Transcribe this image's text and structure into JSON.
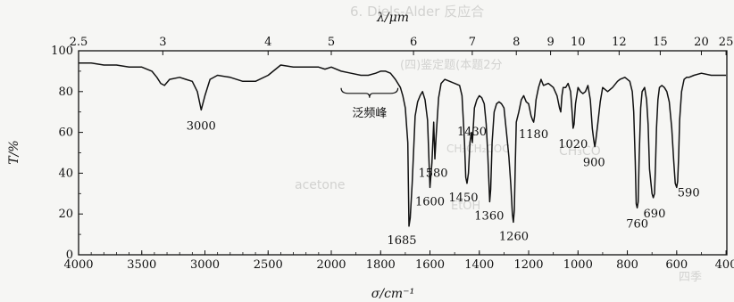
{
  "background_text": {
    "line1": "6. Diels-Alder 反应合",
    "line2": "(四)鉴定题(本题2分",
    "line3": "CH₃CO",
    "line4": "CH₃CH₂COC",
    "line5": "acetone",
    "line6": "EtOH",
    "line7": "四季"
  },
  "chart_data": {
    "type": "line",
    "title": "",
    "xlabel": "σ/cm⁻¹",
    "ylabel": "T/%",
    "top_xlabel": "λ/μm",
    "xlim": [
      4000,
      400
    ],
    "ylim": [
      0,
      100
    ],
    "x_ticks": [
      "4000",
      "3500",
      "3000",
      "2500",
      "2000",
      "1800",
      "1600",
      "1400",
      "1200",
      "1000",
      "800",
      "600",
      "400"
    ],
    "y_ticks": [
      "0",
      "20",
      "40",
      "60",
      "80",
      "100"
    ],
    "top_ticks": [
      "2.5",
      "3",
      "4",
      "5",
      "6",
      "7",
      "8",
      "9",
      "10",
      "12",
      "15",
      "20",
      "25"
    ],
    "grid": false,
    "annotation": "泛频峰",
    "peaks": [
      {
        "label": "3000",
        "x": 3030,
        "y": 71
      },
      {
        "label": "1685",
        "x": 1685,
        "y": 14
      },
      {
        "label": "1600",
        "x": 1600,
        "y": 33
      },
      {
        "label": "1580",
        "x": 1580,
        "y": 47
      },
      {
        "label": "1450",
        "x": 1450,
        "y": 35
      },
      {
        "label": "1430",
        "x": 1430,
        "y": 55
      },
      {
        "label": "1360",
        "x": 1360,
        "y": 26
      },
      {
        "label": "1260",
        "x": 1260,
        "y": 16
      },
      {
        "label": "1180",
        "x": 1180,
        "y": 65
      },
      {
        "label": "1020",
        "x": 1020,
        "y": 62
      },
      {
        "label": "900",
        "x": 935,
        "y": 53
      },
      {
        "label": "760",
        "x": 760,
        "y": 23
      },
      {
        "label": "690",
        "x": 690,
        "y": 28
      },
      {
        "label": "590",
        "x": 595,
        "y": 33
      }
    ],
    "series": [
      {
        "x": [
          4000,
          3900,
          3800,
          3700,
          3600,
          3500,
          3420,
          3380,
          3350,
          3320,
          3280,
          3200,
          3150,
          3100,
          3060,
          3030,
          3000,
          2960,
          2900,
          2800,
          2700,
          2600,
          2500,
          2400,
          2300,
          2200,
          2100,
          2050,
          2000,
          1960,
          1920,
          1880,
          1850,
          1820,
          1800,
          1780,
          1760,
          1740,
          1720,
          1710,
          1700,
          1690,
          1685,
          1680,
          1672,
          1665,
          1660,
          1650,
          1640,
          1630,
          1620,
          1610,
          1600,
          1592,
          1585,
          1580,
          1575,
          1565,
          1555,
          1540,
          1520,
          1500,
          1480,
          1470,
          1460,
          1455,
          1450,
          1444,
          1438,
          1432,
          1428,
          1420,
          1410,
          1400,
          1390,
          1380,
          1372,
          1366,
          1362,
          1358,
          1354,
          1348,
          1340,
          1330,
          1320,
          1310,
          1300,
          1290,
          1280,
          1272,
          1266,
          1262,
          1258,
          1254,
          1250,
          1240,
          1230,
          1220,
          1210,
          1200,
          1190,
          1184,
          1180,
          1176,
          1170,
          1160,
          1150,
          1140,
          1120,
          1100,
          1085,
          1075,
          1070,
          1065,
          1060,
          1050,
          1040,
          1030,
          1024,
          1020,
          1016,
          1010,
          1000,
          990,
          980,
          970,
          960,
          950,
          942,
          936,
          932,
          928,
          920,
          910,
          900,
          880,
          860,
          840,
          830,
          810,
          800,
          790,
          780,
          774,
          768,
          764,
          760,
          756,
          752,
          746,
          740,
          730,
          722,
          716,
          710,
          700,
          695,
          690,
          686,
          682,
          676,
          670,
          660,
          650,
          640,
          630,
          620,
          612,
          606,
          600,
          596,
          592,
          588,
          580,
          570,
          560,
          550,
          530,
          500,
          460,
          430,
          410,
          400
        ],
        "y": [
          94,
          94,
          93,
          93,
          92,
          92,
          90,
          87,
          84,
          83,
          86,
          87,
          86,
          85,
          80,
          71,
          78,
          86,
          88,
          87,
          85,
          85,
          88,
          93,
          92,
          92,
          92,
          91,
          92,
          90,
          89,
          88,
          88,
          89,
          90,
          90,
          89,
          86,
          82,
          78,
          72,
          55,
          14,
          18,
          35,
          55,
          68,
          75,
          78,
          80,
          76,
          66,
          33,
          45,
          65,
          47,
          58,
          77,
          84,
          86,
          85,
          84,
          83,
          78,
          55,
          38,
          35,
          40,
          55,
          60,
          55,
          72,
          76,
          78,
          77,
          74,
          64,
          50,
          38,
          26,
          32,
          55,
          70,
          74,
          75,
          74,
          72,
          60,
          48,
          34,
          20,
          16,
          22,
          45,
          65,
          70,
          76,
          78,
          75,
          74,
          68,
          66,
          65,
          68,
          76,
          82,
          86,
          83,
          84,
          82,
          78,
          72,
          70,
          78,
          82,
          82,
          84,
          80,
          70,
          62,
          64,
          74,
          82,
          80,
          79,
          80,
          83,
          76,
          62,
          56,
          53,
          56,
          64,
          75,
          82,
          80,
          82,
          85,
          86,
          87,
          86,
          85,
          80,
          70,
          46,
          25,
          23,
          26,
          48,
          72,
          80,
          82,
          76,
          64,
          42,
          30,
          28,
          30,
          44,
          62,
          76,
          82,
          83,
          82,
          80,
          75,
          62,
          46,
          35,
          33,
          36,
          48,
          66,
          80,
          86,
          87,
          87,
          88,
          89,
          88,
          88,
          88,
          88
        ]
      }
    ]
  }
}
